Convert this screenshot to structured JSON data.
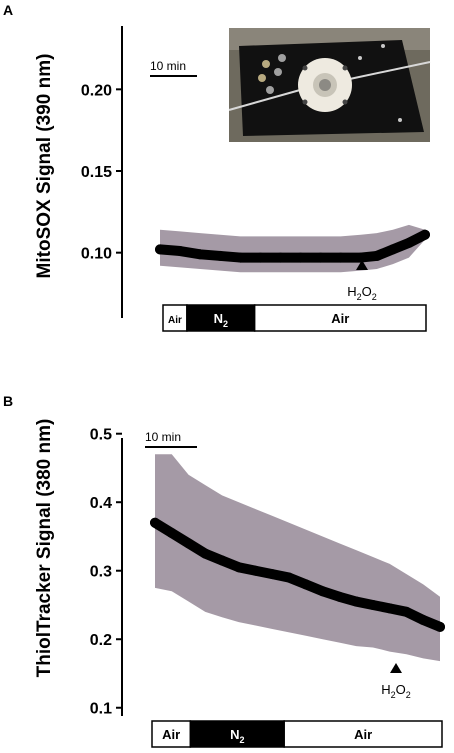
{
  "chart_data": [
    {
      "panel": "A",
      "type": "line",
      "ylabel": "MitoSOX Signal (390 nm)",
      "ylim": [
        0.06,
        0.24
      ],
      "yticks": [
        0.1,
        0.15,
        0.2
      ],
      "ytick_labels": [
        "0.10",
        "0.15",
        "0.20"
      ],
      "time_unit": "min",
      "x": [
        0,
        5,
        10,
        15,
        20,
        25,
        30,
        35,
        40,
        45,
        50,
        54,
        58,
        62,
        66
      ],
      "series": [
        {
          "values": [
            0.102,
            0.101,
            0.099,
            0.098,
            0.097,
            0.097,
            0.097,
            0.097,
            0.097,
            0.097,
            0.097,
            0.098,
            0.102,
            0.106,
            0.111
          ],
          "upper": [
            0.114,
            0.113,
            0.112,
            0.111,
            0.11,
            0.11,
            0.11,
            0.11,
            0.11,
            0.11,
            0.111,
            0.112,
            0.114,
            0.117,
            0.114
          ],
          "lower": [
            0.092,
            0.091,
            0.09,
            0.089,
            0.088,
            0.088,
            0.088,
            0.088,
            0.088,
            0.088,
            0.089,
            0.09,
            0.093,
            0.097,
            0.108
          ]
        }
      ],
      "scale_bar": "10 min",
      "annotation": {
        "label": "H",
        "sub1": "2",
        "mid": "O",
        "sub2": "2",
        "at_x": 48
      },
      "conditions": [
        {
          "label": "Air",
          "sub": "",
          "x_start": 0,
          "x_end": 6,
          "style": "white",
          "small": true
        },
        {
          "label": "N",
          "sub": "2",
          "x_start": 6,
          "x_end": 23,
          "style": "black",
          "small": false
        },
        {
          "label": "Air",
          "sub": "",
          "x_start": 23,
          "x_end": 66,
          "style": "white",
          "small": false
        }
      ],
      "grid": false,
      "colors": {
        "line": "#000000",
        "band": "#a59aa6"
      }
    },
    {
      "panel": "B",
      "type": "line",
      "ylabel": "ThiolTracker Signal (380 nm)",
      "ylim": [
        0.05,
        0.52
      ],
      "yticks": [
        0.1,
        0.2,
        0.3,
        0.4,
        0.5
      ],
      "ytick_labels": [
        "0.1",
        "0.2",
        "0.3",
        "0.4",
        "0.5"
      ],
      "time_unit": "min",
      "x": [
        0,
        4,
        8,
        12,
        16,
        20,
        24,
        28,
        32,
        36,
        40,
        44,
        48,
        52,
        56,
        60,
        64,
        68
      ],
      "series": [
        {
          "values": [
            0.37,
            0.355,
            0.34,
            0.325,
            0.315,
            0.305,
            0.3,
            0.295,
            0.29,
            0.28,
            0.27,
            0.262,
            0.255,
            0.25,
            0.245,
            0.24,
            0.228,
            0.218
          ],
          "upper": [
            0.47,
            0.47,
            0.44,
            0.425,
            0.41,
            0.4,
            0.39,
            0.38,
            0.37,
            0.36,
            0.35,
            0.34,
            0.33,
            0.32,
            0.31,
            0.295,
            0.28,
            0.262
          ],
          "lower": [
            0.275,
            0.27,
            0.255,
            0.24,
            0.232,
            0.225,
            0.22,
            0.215,
            0.21,
            0.205,
            0.2,
            0.195,
            0.19,
            0.188,
            0.182,
            0.178,
            0.172,
            0.168
          ]
        }
      ],
      "scale_bar": "10 min",
      "annotation": {
        "label": "H",
        "sub1": "2",
        "mid": "O",
        "sub2": "2",
        "at_x": 60
      },
      "conditions": [
        {
          "label": "Air",
          "sub": "",
          "x_start": 0,
          "x_end": 9,
          "style": "white",
          "small": false
        },
        {
          "label": "N",
          "sub": "2",
          "x_start": 9,
          "x_end": 31,
          "style": "black",
          "small": false
        },
        {
          "label": "Air",
          "sub": "",
          "x_start": 31,
          "x_end": 68,
          "style": "white",
          "small": false
        }
      ],
      "grid": false,
      "colors": {
        "line": "#000000",
        "band": "#a59aa6"
      }
    }
  ],
  "inset_photo": {
    "description_icon": "perfusion-chamber-photo"
  }
}
